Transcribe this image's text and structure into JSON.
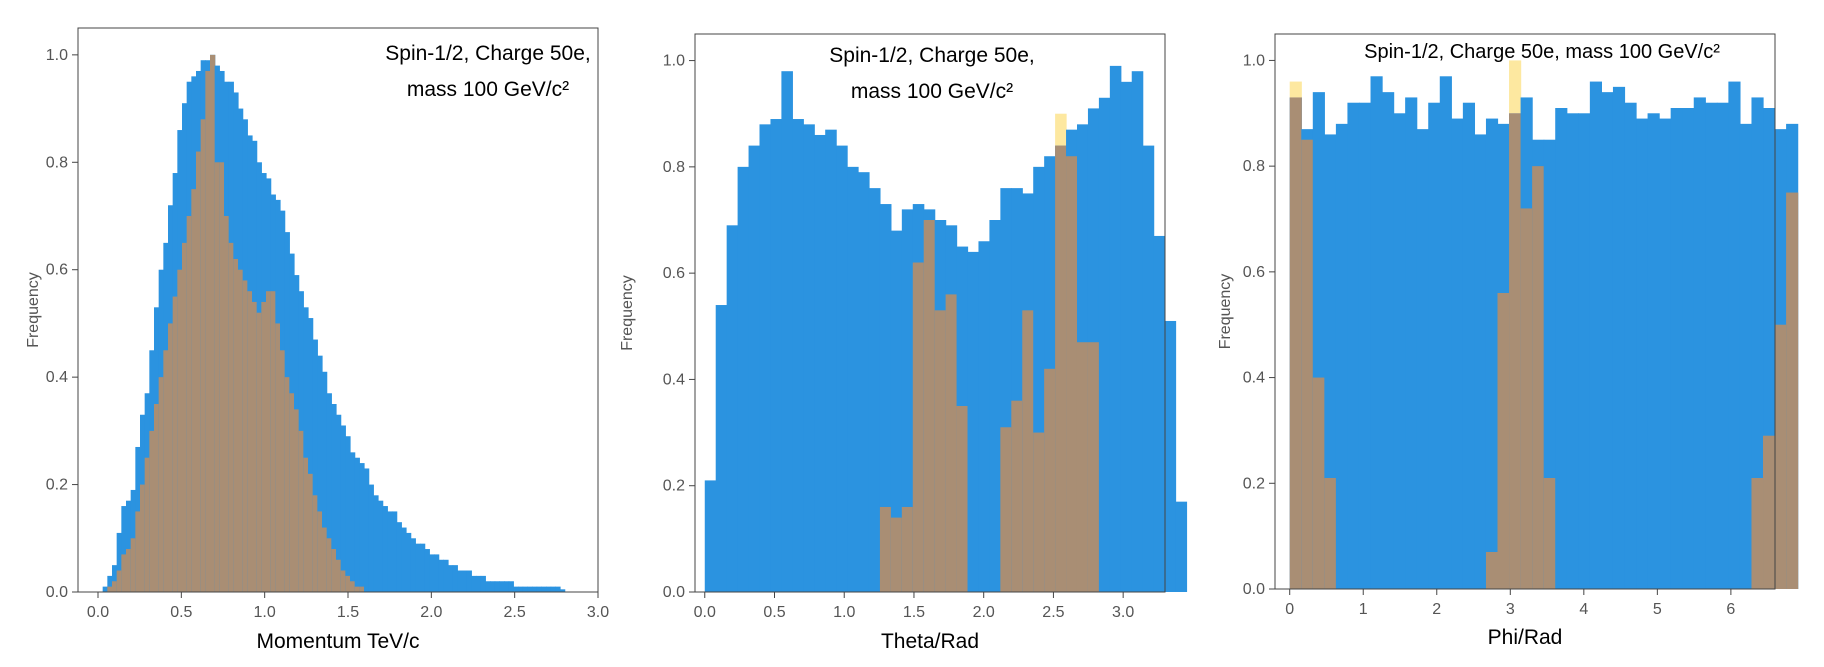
{
  "colors": {
    "series_a": "#2b93e0",
    "series_b": "#fde8a0",
    "overlap": "#a98e74",
    "axis": "#555555",
    "tick_text": "#555555",
    "label_text": "#000000"
  },
  "chart_data": [
    {
      "type": "histogram",
      "title_line1": "Spin-1/2, Charge 50e,",
      "title_line2": "mass 100 GeV/c²",
      "xlabel": "Momentum  TeV/c",
      "ylabel": "Frequency",
      "xlim": [
        -0.12,
        3.0
      ],
      "ylim": [
        0,
        1.05
      ],
      "xticks": [
        "0.0",
        "0.5",
        "1.0",
        "1.5",
        "2.0",
        "2.5",
        "3.0"
      ],
      "yticks": [
        "0.0",
        "0.2",
        "0.4",
        "0.6",
        "0.8",
        "1.0"
      ],
      "bin_start": 0.0,
      "bin_width": 0.028,
      "series": [
        {
          "values": [
            0,
            0.01,
            0.03,
            0.05,
            0.11,
            0.16,
            0.17,
            0.19,
            0.27,
            0.33,
            0.37,
            0.45,
            0.53,
            0.6,
            0.65,
            0.72,
            0.78,
            0.86,
            0.91,
            0.95,
            0.96,
            0.97,
            0.99,
            0.99,
            1.0,
            0.98,
            0.97,
            0.95,
            0.95,
            0.93,
            0.9,
            0.88,
            0.85,
            0.84,
            0.8,
            0.78,
            0.77,
            0.74,
            0.73,
            0.71,
            0.67,
            0.63,
            0.59,
            0.56,
            0.53,
            0.51,
            0.47,
            0.44,
            0.41,
            0.37,
            0.35,
            0.33,
            0.31,
            0.29,
            0.26,
            0.25,
            0.24,
            0.23,
            0.2,
            0.18,
            0.17,
            0.16,
            0.15,
            0.15,
            0.13,
            0.12,
            0.11,
            0.1,
            0.09,
            0.09,
            0.08,
            0.07,
            0.07,
            0.06,
            0.06,
            0.05,
            0.05,
            0.04,
            0.04,
            0.04,
            0.03,
            0.03,
            0.03,
            0.02,
            0.02,
            0.02,
            0.02,
            0.02,
            0.02,
            0.01,
            0.01,
            0.01,
            0.01,
            0.01,
            0.01,
            0.01,
            0.01,
            0.01,
            0.01,
            0.005
          ]
        },
        {
          "values": [
            0,
            0,
            0.01,
            0.02,
            0.04,
            0.07,
            0.08,
            0.1,
            0.15,
            0.2,
            0.25,
            0.3,
            0.35,
            0.4,
            0.45,
            0.5,
            0.55,
            0.6,
            0.65,
            0.7,
            0.75,
            0.82,
            0.88,
            0.97,
            1.0,
            0.8,
            0.8,
            0.7,
            0.65,
            0.62,
            0.6,
            0.58,
            0.56,
            0.54,
            0.52,
            0.54,
            0.56,
            0.56,
            0.5,
            0.45,
            0.4,
            0.37,
            0.34,
            0.3,
            0.25,
            0.22,
            0.18,
            0.15,
            0.12,
            0.1,
            0.08,
            0.06,
            0.04,
            0.03,
            0.02,
            0.01,
            0.01,
            0,
            0,
            0,
            0,
            0,
            0,
            0,
            0,
            0,
            0,
            0,
            0,
            0,
            0,
            0,
            0,
            0,
            0,
            0,
            0,
            0,
            0,
            0,
            0,
            0,
            0,
            0,
            0,
            0,
            0,
            0,
            0,
            0,
            0,
            0,
            0,
            0,
            0,
            0,
            0,
            0,
            0,
            0
          ]
        }
      ]
    },
    {
      "type": "histogram",
      "title_line1": "Spin-1/2, Charge 50e,",
      "title_line2": "mass 100 GeV/c²",
      "xlabel": "Theta/Rad",
      "ylabel": "Frequency",
      "xlim": [
        -0.07,
        3.3
      ],
      "ylim": [
        0,
        1.05
      ],
      "xticks": [
        "0.0",
        "0.5",
        "1.0",
        "1.5",
        "2.0",
        "2.5",
        "3.0"
      ],
      "yticks": [
        "0.0",
        "0.2",
        "0.4",
        "0.6",
        "0.8",
        "1.0"
      ],
      "bin_start": 0.0,
      "bin_width": 0.0785,
      "series": [
        {
          "values": [
            0.21,
            0.54,
            0.69,
            0.8,
            0.84,
            0.88,
            0.89,
            0.98,
            0.89,
            0.88,
            0.86,
            0.87,
            0.84,
            0.8,
            0.79,
            0.76,
            0.73,
            0.68,
            0.72,
            0.73,
            0.72,
            0.7,
            0.69,
            0.65,
            0.64,
            0.66,
            0.7,
            0.76,
            0.76,
            0.75,
            0.8,
            0.82,
            0.84,
            0.87,
            0.88,
            0.91,
            0.93,
            0.99,
            0.96,
            0.98,
            0.84,
            0.67,
            0.51,
            0.17
          ]
        },
        {
          "values": [
            0,
            0,
            0,
            0,
            0,
            0,
            0,
            0,
            0,
            0,
            0,
            0,
            0,
            0,
            0,
            0,
            0.16,
            0.14,
            0.16,
            0.62,
            0.7,
            0.53,
            0.56,
            0.35,
            0,
            0,
            0,
            0.31,
            0.36,
            0.53,
            0.3,
            0.42,
            0.9,
            0.82,
            0.47,
            0.47,
            0,
            0,
            0,
            0,
            0,
            0,
            0,
            0
          ]
        }
      ]
    },
    {
      "type": "histogram",
      "title_line1": "Spin-1/2, Charge 50e, mass 100 GeV/c²",
      "title_line2": "",
      "xlabel": "Phi/Rad",
      "ylabel": "Frequency",
      "xlim": [
        -0.2,
        6.6
      ],
      "ylim": [
        0,
        1.05
      ],
      "xticks": [
        "0",
        "1",
        "2",
        "3",
        "4",
        "5",
        "6"
      ],
      "yticks": [
        "0.0",
        "0.2",
        "0.4",
        "0.6",
        "0.8",
        "1.0"
      ],
      "bin_start": 0.0,
      "bin_width": 0.157,
      "series": [
        {
          "values": [
            0.93,
            0.87,
            0.94,
            0.86,
            0.88,
            0.92,
            0.92,
            0.97,
            0.94,
            0.9,
            0.93,
            0.87,
            0.92,
            0.97,
            0.89,
            0.92,
            0.86,
            0.89,
            0.88,
            0.9,
            0.93,
            0.85,
            0.85,
            0.91,
            0.9,
            0.9,
            0.96,
            0.94,
            0.95,
            0.92,
            0.89,
            0.9,
            0.89,
            0.91,
            0.91,
            0.93,
            0.92,
            0.92,
            0.96,
            0.88,
            0.93,
            0.91,
            0.87,
            0.88
          ]
        },
        {
          "values": [
            0.96,
            0.85,
            0.4,
            0.21,
            0,
            0,
            0,
            0,
            0,
            0,
            0,
            0,
            0,
            0,
            0,
            0,
            0,
            0.07,
            0.56,
            1.0,
            0.72,
            0.8,
            0.21,
            0,
            0,
            0,
            0,
            0,
            0,
            0,
            0,
            0,
            0,
            0,
            0,
            0,
            0,
            0,
            0,
            0,
            0.21,
            0.29,
            0.5,
            0.75
          ]
        }
      ]
    }
  ]
}
